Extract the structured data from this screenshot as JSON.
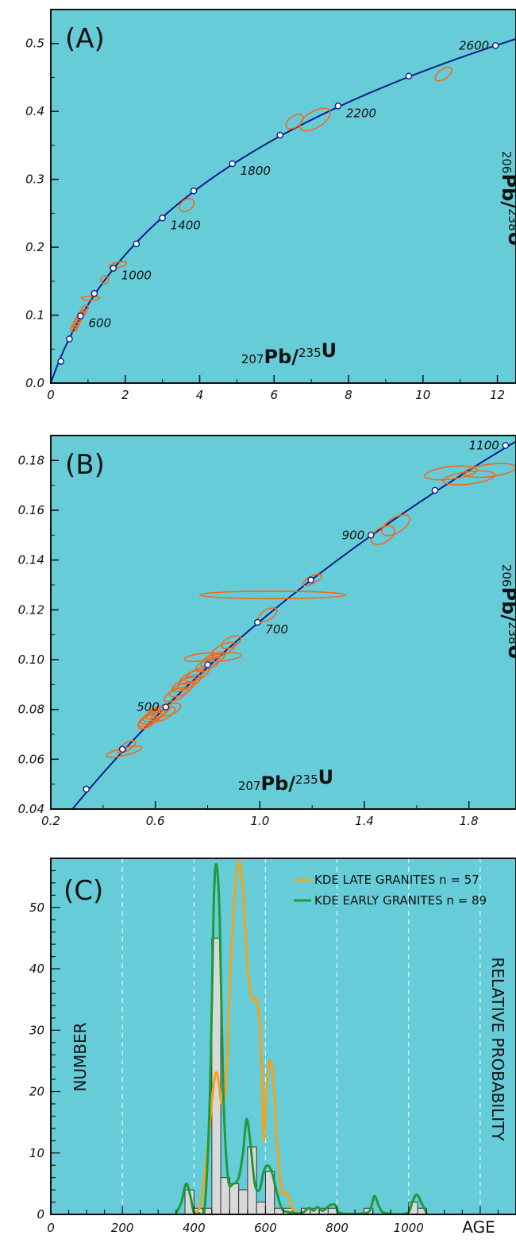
{
  "colors": {
    "background": "#66cdd8",
    "concordia": "#0b1f8a",
    "ellipse": "#f06a1e",
    "kde_late": "#f5a21b",
    "kde_early": "#1f9a3a",
    "histogram_fill": "#d9d9d9",
    "gridline": "#ffffff"
  },
  "chart_data": [
    {
      "type": "scatter",
      "panel_label": "(A)",
      "xlabel": "207Pb/235U",
      "ylabel": "206Pb/238U",
      "xlim": [
        0,
        12.5
      ],
      "ylim": [
        0,
        0.55
      ],
      "x_ticks": [
        "0",
        "2",
        "4",
        "6",
        "8",
        "10",
        "12"
      ],
      "y_ticks": [
        "0.0",
        "0.1",
        "0.2",
        "0.3",
        "0.4",
        "0.5"
      ],
      "concordia_markers": [
        {
          "x": 0.27,
          "y": 0.032
        },
        {
          "x": 0.5,
          "y": 0.065
        },
        {
          "x": 0.8,
          "y": 0.099
        },
        {
          "x": 1.17,
          "y": 0.132
        },
        {
          "x": 1.68,
          "y": 0.169
        },
        {
          "x": 2.3,
          "y": 0.205
        },
        {
          "x": 3.0,
          "y": 0.243
        },
        {
          "x": 3.84,
          "y": 0.283
        },
        {
          "x": 4.88,
          "y": 0.323
        },
        {
          "x": 6.16,
          "y": 0.365
        },
        {
          "x": 7.72,
          "y": 0.408
        },
        {
          "x": 9.62,
          "y": 0.452
        },
        {
          "x": 11.95,
          "y": 0.497
        }
      ],
      "age_labels": [
        {
          "text": "600",
          "x": 0.8,
          "y": 0.099
        },
        {
          "text": "1000",
          "x": 1.68,
          "y": 0.169
        },
        {
          "text": "1400",
          "x": 3.0,
          "y": 0.243
        },
        {
          "text": "1800",
          "x": 4.88,
          "y": 0.323
        },
        {
          "text": "2200",
          "x": 7.72,
          "y": 0.408
        },
        {
          "text": "2600",
          "x": 11.95,
          "y": 0.497
        }
      ],
      "ellipses": [
        {
          "x": 0.62,
          "y": 0.08,
          "rx": 0.1,
          "ry": 0.004,
          "tilt": 0.7
        },
        {
          "x": 0.66,
          "y": 0.085,
          "rx": 0.1,
          "ry": 0.004,
          "tilt": 0.7
        },
        {
          "x": 0.7,
          "y": 0.089,
          "rx": 0.1,
          "ry": 0.004,
          "tilt": 0.7
        },
        {
          "x": 0.75,
          "y": 0.094,
          "rx": 0.1,
          "ry": 0.004,
          "tilt": 0.7
        },
        {
          "x": 0.8,
          "y": 0.1,
          "rx": 0.1,
          "ry": 0.004,
          "tilt": 0.7
        },
        {
          "x": 0.86,
          "y": 0.104,
          "rx": 0.1,
          "ry": 0.004,
          "tilt": 0.7
        },
        {
          "x": 0.92,
          "y": 0.11,
          "rx": 0.1,
          "ry": 0.004,
          "tilt": 0.7
        },
        {
          "x": 1.07,
          "y": 0.125,
          "rx": 0.25,
          "ry": 0.002,
          "tilt": 0
        },
        {
          "x": 1.45,
          "y": 0.152,
          "rx": 0.1,
          "ry": 0.006,
          "tilt": 0.7
        },
        {
          "x": 1.8,
          "y": 0.174,
          "rx": 0.24,
          "ry": 0.004,
          "tilt": 0.2
        },
        {
          "x": 3.65,
          "y": 0.262,
          "rx": 0.22,
          "ry": 0.008,
          "tilt": 0.6
        },
        {
          "x": 6.55,
          "y": 0.385,
          "rx": 0.26,
          "ry": 0.008,
          "tilt": 0.6
        },
        {
          "x": 7.1,
          "y": 0.388,
          "rx": 0.46,
          "ry": 0.012,
          "tilt": 0.5
        },
        {
          "x": 10.55,
          "y": 0.455,
          "rx": 0.26,
          "ry": 0.007,
          "tilt": 0.6
        }
      ]
    },
    {
      "type": "scatter",
      "panel_label": "(B)",
      "xlabel": "207Pb/235U",
      "ylabel": "206Pb/238U",
      "xlim": [
        0.2,
        1.98
      ],
      "ylim": [
        0.04,
        0.19
      ],
      "x_ticks": [
        "0.2",
        "0.6",
        "1.0",
        "1.4",
        "1.8"
      ],
      "y_ticks": [
        "0.04",
        "0.06",
        "0.08",
        "0.10",
        "0.12",
        "0.14",
        "0.16",
        "0.18"
      ],
      "concordia_markers": [
        {
          "x": 0.336,
          "y": 0.048
        },
        {
          "x": 0.474,
          "y": 0.064
        },
        {
          "x": 0.64,
          "y": 0.081
        },
        {
          "x": 0.8,
          "y": 0.098
        },
        {
          "x": 0.991,
          "y": 0.115
        },
        {
          "x": 1.195,
          "y": 0.132
        },
        {
          "x": 1.425,
          "y": 0.15
        },
        {
          "x": 1.67,
          "y": 0.168
        },
        {
          "x": 1.94,
          "y": 0.186
        }
      ],
      "age_labels": [
        {
          "text": "500",
          "x": 0.64,
          "y": 0.081
        },
        {
          "text": "700",
          "x": 0.991,
          "y": 0.115
        },
        {
          "text": "900",
          "x": 1.425,
          "y": 0.15
        },
        {
          "text": "1100",
          "x": 1.94,
          "y": 0.186
        }
      ],
      "ellipses": [
        {
          "x": 0.48,
          "y": 0.063,
          "rx": 0.07,
          "ry": 0.0015,
          "tilt": 0.2
        },
        {
          "x": 0.49,
          "y": 0.065,
          "rx": 0.04,
          "ry": 0.0015,
          "tilt": 0.5
        },
        {
          "x": 0.57,
          "y": 0.075,
          "rx": 0.04,
          "ry": 0.002,
          "tilt": 0.5
        },
        {
          "x": 0.58,
          "y": 0.076,
          "rx": 0.05,
          "ry": 0.002,
          "tilt": 0.4
        },
        {
          "x": 0.59,
          "y": 0.077,
          "rx": 0.05,
          "ry": 0.002,
          "tilt": 0.4
        },
        {
          "x": 0.6,
          "y": 0.078,
          "rx": 0.05,
          "ry": 0.002,
          "tilt": 0.4
        },
        {
          "x": 0.61,
          "y": 0.079,
          "rx": 0.05,
          "ry": 0.002,
          "tilt": 0.4
        },
        {
          "x": 0.63,
          "y": 0.078,
          "rx": 0.05,
          "ry": 0.002,
          "tilt": 0.4
        },
        {
          "x": 0.66,
          "y": 0.08,
          "rx": 0.04,
          "ry": 0.002,
          "tilt": 0.4
        },
        {
          "x": 0.68,
          "y": 0.086,
          "rx": 0.05,
          "ry": 0.002,
          "tilt": 0.4
        },
        {
          "x": 0.7,
          "y": 0.088,
          "rx": 0.05,
          "ry": 0.002,
          "tilt": 0.4
        },
        {
          "x": 0.71,
          "y": 0.09,
          "rx": 0.05,
          "ry": 0.002,
          "tilt": 0.4
        },
        {
          "x": 0.73,
          "y": 0.091,
          "rx": 0.05,
          "ry": 0.002,
          "tilt": 0.4
        },
        {
          "x": 0.74,
          "y": 0.093,
          "rx": 0.05,
          "ry": 0.002,
          "tilt": 0.4
        },
        {
          "x": 0.76,
          "y": 0.094,
          "rx": 0.05,
          "ry": 0.002,
          "tilt": 0.4
        },
        {
          "x": 0.8,
          "y": 0.098,
          "rx": 0.05,
          "ry": 0.002,
          "tilt": 0.4
        },
        {
          "x": 0.82,
          "y": 0.1,
          "rx": 0.05,
          "ry": 0.002,
          "tilt": 0.4
        },
        {
          "x": 0.78,
          "y": 0.101,
          "rx": 0.07,
          "ry": 0.0015,
          "tilt": 0.1
        },
        {
          "x": 0.86,
          "y": 0.101,
          "rx": 0.07,
          "ry": 0.0015,
          "tilt": 0.1
        },
        {
          "x": 0.86,
          "y": 0.104,
          "rx": 0.05,
          "ry": 0.002,
          "tilt": 0.4
        },
        {
          "x": 0.89,
          "y": 0.107,
          "rx": 0.04,
          "ry": 0.002,
          "tilt": 0.4
        },
        {
          "x": 1.03,
          "y": 0.118,
          "rx": 0.04,
          "ry": 0.002,
          "tilt": 0.5
        },
        {
          "x": 1.05,
          "y": 0.126,
          "rx": 0.28,
          "ry": 0.0015,
          "tilt": 0
        },
        {
          "x": 1.2,
          "y": 0.132,
          "rx": 0.04,
          "ry": 0.0015,
          "tilt": 0.4
        },
        {
          "x": 1.47,
          "y": 0.15,
          "rx": 0.05,
          "ry": 0.003,
          "tilt": 0.5
        },
        {
          "x": 1.52,
          "y": 0.154,
          "rx": 0.06,
          "ry": 0.003,
          "tilt": 0.5
        },
        {
          "x": 1.73,
          "y": 0.175,
          "rx": 0.1,
          "ry": 0.0025,
          "tilt": 0.1
        },
        {
          "x": 1.8,
          "y": 0.173,
          "rx": 0.1,
          "ry": 0.0025,
          "tilt": 0.1
        },
        {
          "x": 1.88,
          "y": 0.176,
          "rx": 0.1,
          "ry": 0.0025,
          "tilt": 0.1
        }
      ]
    },
    {
      "type": "bar",
      "panel_label": "(C)",
      "xlabel": "AGE",
      "ylabel": "NUMBER",
      "y2label": "RELATIVE PROBABILITY",
      "xlim": [
        0,
        1300
      ],
      "ylim": [
        0,
        58
      ],
      "x_ticks": [
        "0",
        "200",
        "400",
        "600",
        "800",
        "1000"
      ],
      "y_ticks": [
        "0",
        "10",
        "20",
        "30",
        "40",
        "50"
      ],
      "gridlines_x": [
        200,
        400,
        600,
        800,
        1000,
        1200
      ],
      "bin_width": 25,
      "histogram": [
        {
          "x": 375,
          "count": 4
        },
        {
          "x": 400,
          "count": 1
        },
        {
          "x": 425,
          "count": 1
        },
        {
          "x": 450,
          "count": 45
        },
        {
          "x": 475,
          "count": 6
        },
        {
          "x": 500,
          "count": 5
        },
        {
          "x": 525,
          "count": 4
        },
        {
          "x": 550,
          "count": 11
        },
        {
          "x": 575,
          "count": 2
        },
        {
          "x": 600,
          "count": 7
        },
        {
          "x": 625,
          "count": 1
        },
        {
          "x": 650,
          "count": 1
        },
        {
          "x": 675,
          "count": 0
        },
        {
          "x": 700,
          "count": 1
        },
        {
          "x": 725,
          "count": 1
        },
        {
          "x": 750,
          "count": 1
        },
        {
          "x": 775,
          "count": 1
        },
        {
          "x": 875,
          "count": 1
        },
        {
          "x": 1000,
          "count": 2
        },
        {
          "x": 1025,
          "count": 1
        }
      ],
      "series": [
        {
          "name": "KDE LATE  GRANITES n = 57",
          "points": [
            [
              400,
              0.2
            ],
            [
              420,
              2
            ],
            [
              440,
              12
            ],
            [
              455,
              21
            ],
            [
              465,
              23
            ],
            [
              478,
              18
            ],
            [
              490,
              22
            ],
            [
              502,
              40
            ],
            [
              515,
              53
            ],
            [
              525,
              57.5
            ],
            [
              537,
              53
            ],
            [
              550,
              40
            ],
            [
              563,
              35
            ],
            [
              575,
              35
            ],
            [
              585,
              30
            ],
            [
              592,
              18
            ],
            [
              596,
              12
            ],
            [
              602,
              20
            ],
            [
              612,
              25
            ],
            [
              622,
              22
            ],
            [
              632,
              12
            ],
            [
              645,
              4
            ],
            [
              660,
              3.5
            ],
            [
              675,
              1
            ],
            [
              690,
              0.2
            ]
          ]
        },
        {
          "name": "KDE EARLY GRANITES n = 89",
          "points": [
            [
              350,
              0.2
            ],
            [
              365,
              2
            ],
            [
              378,
              5
            ],
            [
              390,
              3
            ],
            [
              400,
              0.3
            ],
            [
              415,
              0.2
            ],
            [
              430,
              1
            ],
            [
              445,
              20
            ],
            [
              455,
              50
            ],
            [
              463,
              57
            ],
            [
              472,
              48
            ],
            [
              482,
              20
            ],
            [
              495,
              6
            ],
            [
              510,
              5
            ],
            [
              525,
              6
            ],
            [
              537,
              10
            ],
            [
              547,
              15.5
            ],
            [
              557,
              12
            ],
            [
              570,
              5
            ],
            [
              583,
              4
            ],
            [
              595,
              7
            ],
            [
              605,
              8
            ],
            [
              617,
              7
            ],
            [
              630,
              4
            ],
            [
              645,
              1
            ],
            [
              662,
              0.4
            ],
            [
              700,
              0.2
            ],
            [
              720,
              1
            ],
            [
              735,
              0.6
            ],
            [
              745,
              1.2
            ],
            [
              760,
              0.6
            ],
            [
              780,
              1.5
            ],
            [
              795,
              1.5
            ],
            [
              810,
              0.2
            ],
            [
              880,
              0.2
            ],
            [
              895,
              1.2
            ],
            [
              905,
              3
            ],
            [
              918,
              1.2
            ],
            [
              935,
              0.2
            ],
            [
              995,
              0.2
            ],
            [
              1010,
              2
            ],
            [
              1022,
              3.2
            ],
            [
              1035,
              2
            ],
            [
              1050,
              0.2
            ]
          ]
        }
      ]
    }
  ]
}
